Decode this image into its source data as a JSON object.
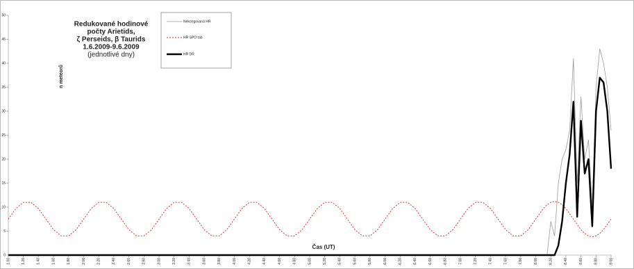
{
  "chart_data": {
    "type": "line",
    "title": [
      "Redukované hodinové",
      "počty Arietids,",
      "ζ Perseids, β Taurids",
      "1.6.2009-9.6.2009",
      "(jednotlivé dny)"
    ],
    "xlabel": "Čas (UT)",
    "ylabel": "n meteorů",
    "x": [
      1.0,
      1.1,
      1.2,
      1.3,
      1.4,
      1.5,
      1.6,
      1.7,
      1.8,
      1.9,
      2.0,
      2.1,
      2.2,
      2.3,
      2.4,
      2.5,
      2.6,
      2.7,
      2.8,
      2.9,
      3.0,
      3.1,
      3.2,
      3.3,
      3.4,
      3.5,
      3.6,
      3.7,
      3.8,
      3.9,
      4.0,
      4.1,
      4.2,
      4.3,
      4.4,
      4.5,
      4.6,
      4.7,
      4.8,
      4.9,
      5.0,
      5.1,
      5.2,
      5.3,
      5.4,
      5.5,
      5.6,
      5.7,
      5.8,
      5.9,
      6.0,
      6.1,
      6.2,
      6.3,
      6.4,
      6.5,
      6.6,
      6.7,
      6.8,
      6.9,
      7.0,
      7.1,
      7.2,
      7.3,
      7.4,
      7.5,
      7.6,
      7.7,
      7.8,
      7.9,
      8.0,
      8.05,
      8.1,
      8.15,
      8.2,
      8.25,
      8.3,
      8.35,
      8.4,
      8.45,
      8.5,
      8.55,
      8.6,
      8.65,
      8.7,
      8.75,
      8.8,
      8.85,
      8.9,
      8.95,
      9.0
    ],
    "series": [
      {
        "name": "Nekorigovaná HR",
        "color": "#999999",
        "values": [
          0,
          0,
          0,
          0,
          0,
          0,
          0,
          0,
          0,
          0,
          0,
          0,
          0,
          0,
          0,
          0,
          0,
          0,
          0,
          0,
          0,
          0,
          0,
          0,
          0,
          0,
          0,
          0,
          0,
          0,
          0,
          0,
          0,
          0,
          0,
          0,
          0,
          0,
          0,
          0,
          0,
          0,
          0,
          0,
          0,
          0,
          0,
          0,
          0,
          0,
          0,
          0,
          0,
          0,
          0,
          0,
          0,
          0,
          0,
          0,
          0,
          0,
          0,
          0,
          0,
          0,
          0,
          0,
          0,
          0,
          0,
          0,
          0,
          0,
          7,
          4,
          15,
          20,
          22,
          26,
          41,
          15,
          33,
          20,
          24,
          10,
          35,
          43,
          40,
          35,
          26
        ]
      },
      {
        "name": "HR SPO tab",
        "color": "#e03030",
        "values": [
          7.5,
          9.7,
          11.0,
          11.0,
          9.7,
          7.5,
          5.3,
          4.0,
          4.0,
          5.3,
          7.5,
          9.7,
          11.0,
          11.0,
          9.7,
          7.5,
          5.3,
          4.0,
          4.0,
          5.3,
          7.5,
          9.7,
          11.0,
          11.0,
          9.7,
          7.5,
          5.3,
          4.0,
          4.0,
          5.3,
          7.5,
          9.7,
          11.0,
          11.0,
          9.7,
          7.5,
          5.3,
          4.0,
          4.0,
          5.3,
          7.5,
          9.7,
          11.0,
          11.0,
          9.7,
          7.5,
          5.3,
          4.0,
          4.0,
          5.3,
          7.5,
          9.7,
          11.0,
          11.0,
          9.7,
          7.5,
          5.3,
          4.0,
          4.0,
          5.3,
          7.5,
          9.7,
          11.0,
          11.0,
          9.7,
          7.5,
          5.3,
          4.0,
          4.0,
          5.3,
          7.5,
          8.6,
          9.7,
          10.5,
          11.0,
          11.2,
          11.0,
          10.5,
          9.7,
          8.6,
          7.5,
          6.4,
          5.3,
          4.5,
          4.0,
          3.8,
          4.0,
          4.5,
          5.3,
          6.4,
          7.5
        ]
      },
      {
        "name": "HR DR",
        "color": "#000000",
        "values": [
          0,
          0,
          0,
          0,
          0,
          0,
          0,
          0,
          0,
          0,
          0,
          0,
          0,
          0,
          0,
          0,
          0,
          0,
          0,
          0,
          0,
          0,
          0,
          0,
          0,
          0,
          0,
          0,
          0,
          0,
          0,
          0,
          0,
          0,
          0,
          0,
          0,
          0,
          0,
          0,
          0,
          0,
          0,
          0,
          0,
          0,
          0,
          0,
          0,
          0,
          0,
          0,
          0,
          0,
          0,
          0,
          0,
          0,
          0,
          0,
          0,
          0,
          0,
          0,
          0,
          0,
          0,
          0,
          0,
          0,
          0,
          0,
          0,
          0,
          0,
          0,
          2,
          7,
          15,
          21,
          32,
          8,
          28,
          17,
          20,
          6,
          30,
          37,
          36,
          30,
          18
        ]
      }
    ],
    "xlim": [
      1,
      9
    ],
    "xticks": [
      {
        "value": 1.0,
        "label": "1.00"
      },
      {
        "value": 1.2,
        "label": "1.20"
      },
      {
        "value": 1.4,
        "label": "1.40"
      },
      {
        "value": 1.6,
        "label": "1.60"
      },
      {
        "value": 1.8,
        "label": "1.80"
      },
      {
        "value": 2.0,
        "label": "2.00"
      },
      {
        "value": 2.2,
        "label": "2.20"
      },
      {
        "value": 2.4,
        "label": "2.40"
      },
      {
        "value": 2.6,
        "label": "2.60"
      },
      {
        "value": 2.8,
        "label": "2.80"
      },
      {
        "value": 3.0,
        "label": "3.00"
      },
      {
        "value": 3.2,
        "label": "3.20"
      },
      {
        "value": 3.4,
        "label": "3.40"
      },
      {
        "value": 3.6,
        "label": "3.60"
      },
      {
        "value": 3.8,
        "label": "3.80"
      },
      {
        "value": 4.0,
        "label": "4.00"
      },
      {
        "value": 4.2,
        "label": "4.20"
      },
      {
        "value": 4.4,
        "label": "4.40"
      },
      {
        "value": 4.6,
        "label": "4.60"
      },
      {
        "value": 4.8,
        "label": "4.80"
      },
      {
        "value": 5.0,
        "label": "5.00"
      },
      {
        "value": 5.2,
        "label": "5.20"
      },
      {
        "value": 5.4,
        "label": "5.40"
      },
      {
        "value": 5.6,
        "label": "5.60"
      },
      {
        "value": 5.8,
        "label": "5.80"
      },
      {
        "value": 6.0,
        "label": "6.00"
      },
      {
        "value": 6.2,
        "label": "6.20"
      },
      {
        "value": 6.4,
        "label": "6.40"
      },
      {
        "value": 6.6,
        "label": "6.60"
      },
      {
        "value": 6.8,
        "label": "6.80"
      },
      {
        "value": 7.0,
        "label": "7.00"
      },
      {
        "value": 7.2,
        "label": "7.20"
      },
      {
        "value": 7.4,
        "label": "7.40"
      },
      {
        "value": 7.6,
        "label": "7.60"
      },
      {
        "value": 7.8,
        "label": "7.80"
      },
      {
        "value": 8.0,
        "label": "8.00"
      },
      {
        "value": 8.2,
        "label": "8.20"
      },
      {
        "value": 8.4,
        "label": "8.40"
      },
      {
        "value": 8.6,
        "label": "8.60"
      },
      {
        "value": 8.8,
        "label": "8.80"
      },
      {
        "value": 9.0,
        "label": "9.00"
      }
    ],
    "ylim": [
      0,
      50
    ],
    "yticks": [
      0,
      5,
      10,
      15,
      20,
      25,
      30,
      35,
      40,
      45,
      50
    ]
  }
}
